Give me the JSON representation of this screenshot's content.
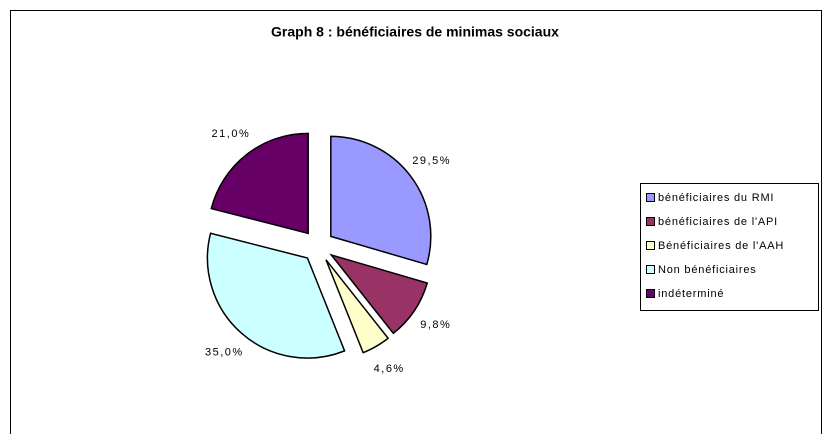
{
  "chart_data": {
    "type": "pie",
    "title": "Graph 8 : bénéficiaires de minimas sociaux",
    "categories": [
      "bénéficiaires du RMI",
      "bénéficiaires de l'API",
      "Bénéficiaires de l'AAH",
      "Non bénéficiaires",
      "indéterminé"
    ],
    "values": [
      29.5,
      9.8,
      4.6,
      35.0,
      21.0
    ],
    "value_labels": [
      "29,5%",
      "9,8%",
      "4,6%",
      "35,0%",
      "21,0%"
    ],
    "colors": [
      "#9999ff",
      "#993366",
      "#ffffcc",
      "#ccffff",
      "#660066"
    ],
    "legend": "right"
  }
}
